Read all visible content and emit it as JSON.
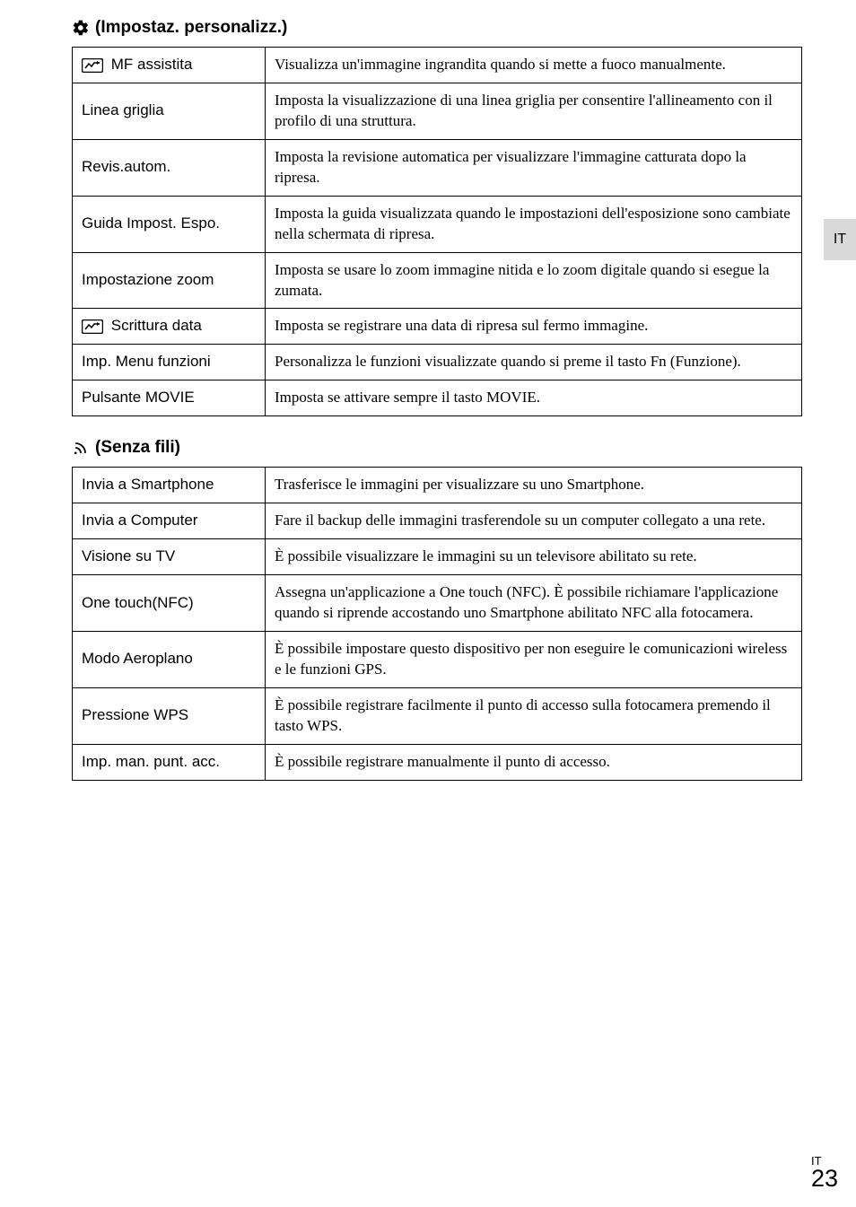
{
  "sections": {
    "custom": {
      "title": "(Impostaz. personalizz.)",
      "rows": [
        {
          "label": "MF assistita",
          "hasIcon": true,
          "desc": "Visualizza un'immagine ingrandita quando si mette a fuoco manualmente."
        },
        {
          "label": "Linea griglia",
          "hasIcon": false,
          "desc": "Imposta la visualizzazione di una linea griglia per consentire l'allineamento con il profilo di una struttura."
        },
        {
          "label": "Revis.autom.",
          "hasIcon": false,
          "desc": "Imposta la revisione automatica per visualizzare l'immagine catturata dopo la ripresa."
        },
        {
          "label": "Guida Impost. Espo.",
          "hasIcon": false,
          "desc": "Imposta la guida visualizzata quando le impostazioni dell'esposizione sono cambiate nella schermata di ripresa."
        },
        {
          "label": "Impostazione zoom",
          "hasIcon": false,
          "desc": "Imposta se usare lo zoom immagine nitida e lo zoom digitale quando si esegue la zumata."
        },
        {
          "label": "Scrittura data",
          "hasIcon": true,
          "desc": "Imposta se registrare una data di ripresa sul fermo immagine."
        },
        {
          "label": "Imp. Menu funzioni",
          "hasIcon": false,
          "desc": "Personalizza le funzioni visualizzate quando si preme il tasto Fn (Funzione)."
        },
        {
          "label": "Pulsante MOVIE",
          "hasIcon": false,
          "desc": "Imposta se attivare sempre il tasto MOVIE."
        }
      ]
    },
    "wireless": {
      "title": "(Senza fili)",
      "rows": [
        {
          "label": "Invia a Smartphone",
          "desc": "Trasferisce le immagini per visualizzare su uno Smartphone."
        },
        {
          "label": "Invia a Computer",
          "desc": "Fare il backup delle immagini trasferendole su un computer collegato a una rete."
        },
        {
          "label": "Visione su TV",
          "desc": "È possibile visualizzare le immagini su un televisore abilitato su rete."
        },
        {
          "label": "One touch(NFC)",
          "desc": "Assegna un'applicazione a One touch (NFC). È possibile richiamare l'applicazione quando si riprende accostando uno Smartphone abilitato NFC alla fotocamera."
        },
        {
          "label": "Modo Aeroplano",
          "desc": "È possibile impostare questo dispositivo per non eseguire le comunicazioni wireless e le funzioni GPS."
        },
        {
          "label": "Pressione WPS",
          "desc": "È possibile registrare facilmente il punto di accesso sulla fotocamera premendo il tasto WPS."
        },
        {
          "label": "Imp. man. punt. acc.",
          "desc": "È possibile registrare manualmente il punto di accesso."
        }
      ]
    }
  },
  "sideTab": "IT",
  "footer": {
    "lang": "IT",
    "page": "23"
  },
  "colors": {
    "background": "#ffffff",
    "border": "#000000",
    "tab": "#d9d9d9"
  }
}
